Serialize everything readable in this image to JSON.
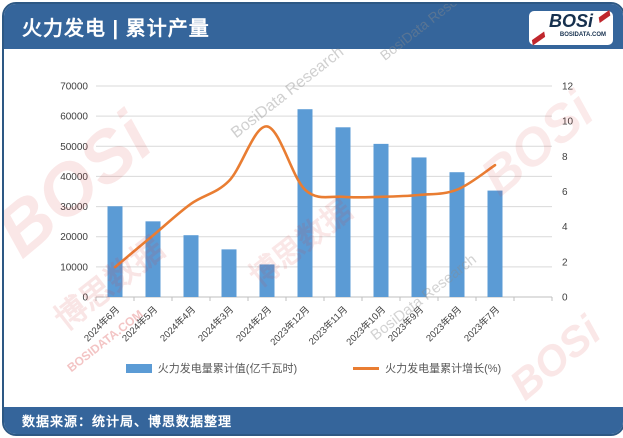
{
  "header": {
    "title": "火力发电 | 累计产量",
    "logo_text": "BOSi",
    "logo_caption": "BOSIDATA.COM"
  },
  "footer": {
    "source": "数据来源：统计局、博思数据整理"
  },
  "watermarks": {
    "brand_en": "BOSi",
    "brand_cn": "博思数据",
    "research": "BosiData Research",
    "site": "BOSIDATA.COM"
  },
  "colors": {
    "header_blue": "#35659B",
    "bar_blue": "#5B9BD5",
    "line_orange": "#E97D32",
    "grid_gray": "#D9D9D9",
    "axis_gray": "#BFBFBF",
    "tick_text": "#404040",
    "legend_text": "#595959"
  },
  "chart_data": {
    "type": "bar",
    "subtype": "bar+line combo, dual axis",
    "categories": [
      "2024年6月",
      "2024年5月",
      "2024年4月",
      "2024年3月",
      "2024年2月",
      "2023年12月",
      "2023年11月",
      "2023年10月",
      "2023年9月",
      "2023年8月",
      "2023年7月"
    ],
    "series": [
      {
        "name": "火力发电量累计值(亿千瓦时)",
        "type": "bar",
        "axis": "left",
        "color": "#5B9BD5",
        "values": [
          30100,
          25100,
          20500,
          15800,
          10800,
          62300,
          56300,
          50800,
          46300,
          41400,
          35300
        ]
      },
      {
        "name": "火力发电量累计增长(%)",
        "type": "line",
        "axis": "right",
        "color": "#E97D32",
        "values": [
          1.7,
          3.5,
          5.3,
          6.6,
          9.7,
          6.1,
          5.7,
          5.7,
          5.8,
          6.1,
          7.5
        ]
      }
    ],
    "left_axis": {
      "min": 0,
      "max": 70000,
      "step": 10000,
      "ticks": [
        "0",
        "10000",
        "20000",
        "30000",
        "40000",
        "50000",
        "60000",
        "70000"
      ]
    },
    "right_axis": {
      "min": 0,
      "max": 12,
      "step": 2,
      "ticks": [
        "0",
        "2",
        "4",
        "6",
        "8",
        "10",
        "12"
      ]
    },
    "grid": true,
    "legend_position": "bottom",
    "x_label_rotation": -45,
    "empty_trailing_slots": 1
  }
}
